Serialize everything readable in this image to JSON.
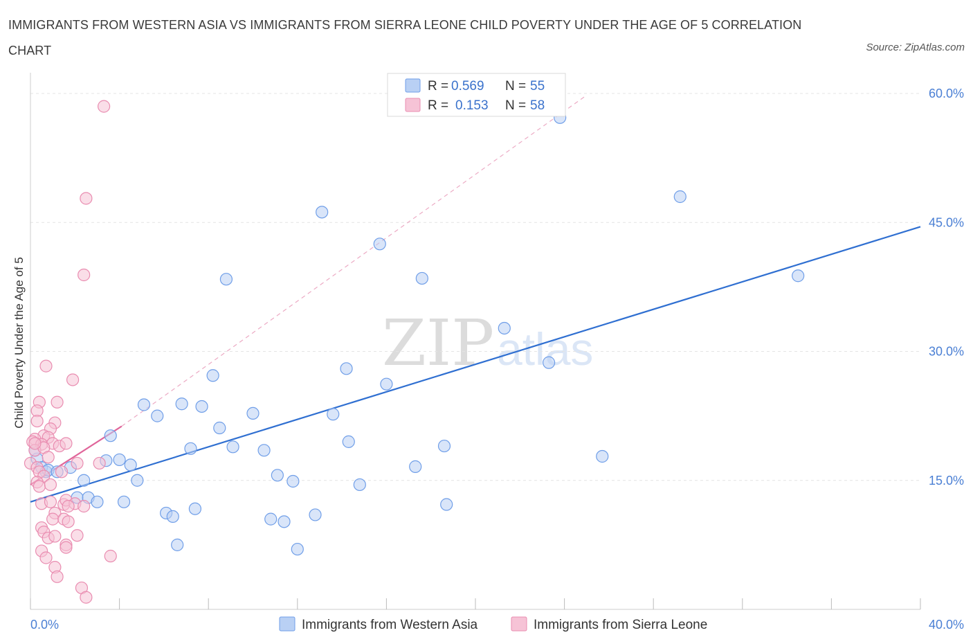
{
  "title": "IMMIGRANTS FROM WESTERN ASIA VS IMMIGRANTS FROM SIERRA LEONE CHILD POVERTY UNDER THE AGE OF 5 CORRELATION CHART",
  "source": "Source: ZipAtlas.com",
  "watermark": {
    "zip": "ZIP",
    "atlas": "atlas"
  },
  "chart_data": {
    "type": "scatter",
    "title": "IMMIGRANTS FROM WESTERN ASIA VS IMMIGRANTS FROM SIERRA LEONE CHILD POVERTY UNDER THE AGE OF 5 CORRELATION CHART",
    "xlabel": "",
    "ylabel": "Child Poverty Under the Age of 5",
    "xlim": [
      0,
      40
    ],
    "ylim": [
      0,
      60
    ],
    "x_tick_labels": {
      "left": "0.0%",
      "right": "40.0%"
    },
    "y_ticks": [
      15,
      30,
      45,
      60
    ],
    "y_tick_labels": [
      "15.0%",
      "30.0%",
      "45.0%",
      "60.0%"
    ],
    "grid": true,
    "legend": [
      {
        "r_label": "R =",
        "r_value": "0.569",
        "n_label": "N =",
        "n_value": "55"
      },
      {
        "r_label": "R =",
        "r_value": "0.153",
        "n_label": "N =",
        "n_value": "58"
      }
    ],
    "series": [
      {
        "name": "Immigrants from Western Asia",
        "color": "#6f9ee8",
        "fill": "#b9d0f4",
        "trend": {
          "x": [
            0,
            40
          ],
          "y": [
            12.5,
            44.5
          ],
          "dashed_ext": false
        },
        "points": [
          [
            0.3,
            17.5
          ],
          [
            0.5,
            16.5
          ],
          [
            0.7,
            16.0
          ],
          [
            0.8,
            16.2
          ],
          [
            1.2,
            16.0
          ],
          [
            1.8,
            16.5
          ],
          [
            2.4,
            15.0
          ],
          [
            2.1,
            13.0
          ],
          [
            2.6,
            13.0
          ],
          [
            3.0,
            12.5
          ],
          [
            3.4,
            17.3
          ],
          [
            3.6,
            20.2
          ],
          [
            4.0,
            17.4
          ],
          [
            4.2,
            12.5
          ],
          [
            4.5,
            16.8
          ],
          [
            4.8,
            15.0
          ],
          [
            5.1,
            23.8
          ],
          [
            5.7,
            22.5
          ],
          [
            6.1,
            11.2
          ],
          [
            6.4,
            10.8
          ],
          [
            6.6,
            7.5
          ],
          [
            6.8,
            23.9
          ],
          [
            7.2,
            18.7
          ],
          [
            7.4,
            11.7
          ],
          [
            7.7,
            23.6
          ],
          [
            8.2,
            27.2
          ],
          [
            8.5,
            21.1
          ],
          [
            8.8,
            38.4
          ],
          [
            9.1,
            18.9
          ],
          [
            10.0,
            22.8
          ],
          [
            10.5,
            18.5
          ],
          [
            10.8,
            10.5
          ],
          [
            11.1,
            15.6
          ],
          [
            11.4,
            10.2
          ],
          [
            11.8,
            14.9
          ],
          [
            12.0,
            7.0
          ],
          [
            12.8,
            11.0
          ],
          [
            13.1,
            46.2
          ],
          [
            13.6,
            22.7
          ],
          [
            14.2,
            28.0
          ],
          [
            14.3,
            19.5
          ],
          [
            14.8,
            14.5
          ],
          [
            15.7,
            42.5
          ],
          [
            16.0,
            26.2
          ],
          [
            17.3,
            16.6
          ],
          [
            17.6,
            38.5
          ],
          [
            18.6,
            19.0
          ],
          [
            18.7,
            12.2
          ],
          [
            21.3,
            32.7
          ],
          [
            23.3,
            28.7
          ],
          [
            23.8,
            57.2
          ],
          [
            25.7,
            17.8
          ],
          [
            29.2,
            48.0
          ],
          [
            34.5,
            38.8
          ],
          [
            0.2,
            18.5
          ]
        ]
      },
      {
        "name": "Immigrants from Sierra Leone",
        "color": "#e98cb0",
        "fill": "#f6c3d6",
        "trend": {
          "x": [
            0,
            4.1
          ],
          "y": [
            14.5,
            21.3
          ],
          "dashed_ext": true,
          "dash_to": [
            25.0,
            59.8
          ]
        },
        "points": [
          [
            3.3,
            58.5
          ],
          [
            2.5,
            47.8
          ],
          [
            2.4,
            38.9
          ],
          [
            0.7,
            28.3
          ],
          [
            1.9,
            26.7
          ],
          [
            0.4,
            24.1
          ],
          [
            1.2,
            24.1
          ],
          [
            0.3,
            23.1
          ],
          [
            0.3,
            21.9
          ],
          [
            1.1,
            21.7
          ],
          [
            0.9,
            21.0
          ],
          [
            0.6,
            20.2
          ],
          [
            0.8,
            20.0
          ],
          [
            0.2,
            19.8
          ],
          [
            0.1,
            19.5
          ],
          [
            0.5,
            19.2
          ],
          [
            1.0,
            19.3
          ],
          [
            1.3,
            19.0
          ],
          [
            1.6,
            19.3
          ],
          [
            0.2,
            18.5
          ],
          [
            0.6,
            18.8
          ],
          [
            0.0,
            17.0
          ],
          [
            0.3,
            16.5
          ],
          [
            0.8,
            17.7
          ],
          [
            2.1,
            17.0
          ],
          [
            3.1,
            17.0
          ],
          [
            0.4,
            16.0
          ],
          [
            0.6,
            15.5
          ],
          [
            1.4,
            16.0
          ],
          [
            0.3,
            14.8
          ],
          [
            0.4,
            14.3
          ],
          [
            0.9,
            14.5
          ],
          [
            0.5,
            12.3
          ],
          [
            0.9,
            12.5
          ],
          [
            1.5,
            12.2
          ],
          [
            1.6,
            12.7
          ],
          [
            2.0,
            12.3
          ],
          [
            2.4,
            12.0
          ],
          [
            1.1,
            11.2
          ],
          [
            1.0,
            10.5
          ],
          [
            1.5,
            10.5
          ],
          [
            1.7,
            10.2
          ],
          [
            0.5,
            9.5
          ],
          [
            0.6,
            9.0
          ],
          [
            0.8,
            8.3
          ],
          [
            1.1,
            8.5
          ],
          [
            2.1,
            8.6
          ],
          [
            1.6,
            7.5
          ],
          [
            1.6,
            7.2
          ],
          [
            0.5,
            6.8
          ],
          [
            0.7,
            6.0
          ],
          [
            3.6,
            6.2
          ],
          [
            1.1,
            4.9
          ],
          [
            1.2,
            3.8
          ],
          [
            2.3,
            2.5
          ],
          [
            2.5,
            1.4
          ],
          [
            1.7,
            12.0
          ],
          [
            0.2,
            19.3
          ]
        ]
      }
    ]
  }
}
